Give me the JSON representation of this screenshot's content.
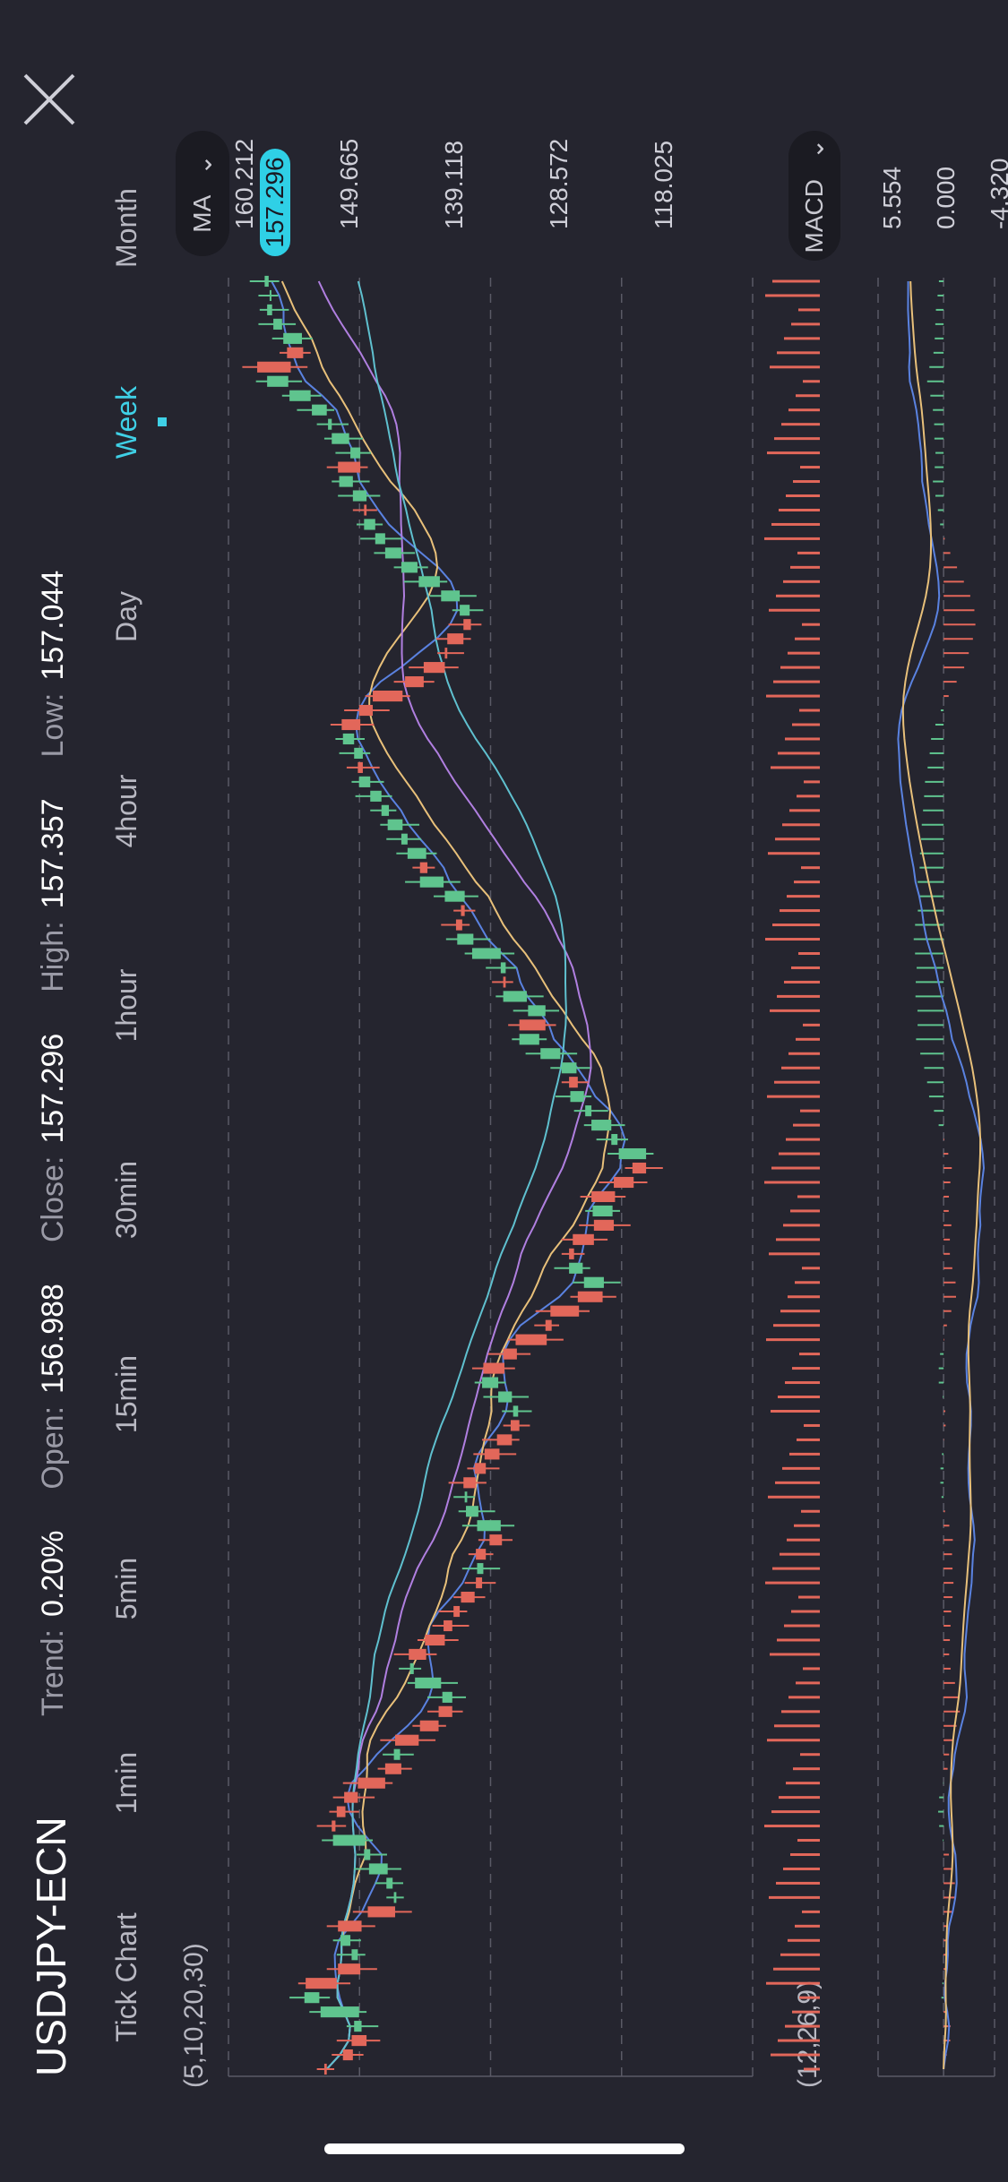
{
  "header": {
    "symbol": "USDJPY-ECN",
    "trend_label": "Trend:",
    "trend_value": "0.20%",
    "open_label": "Open:",
    "open_value": "156.988",
    "close_label": "Close:",
    "close_value": "157.296",
    "high_label": "High:",
    "high_value": "157.357",
    "low_label": "Low:",
    "low_value": "157.044"
  },
  "tabs": [
    {
      "label": "Tick Chart"
    },
    {
      "label": "1min"
    },
    {
      "label": "5min"
    },
    {
      "label": "15min"
    },
    {
      "label": "30min"
    },
    {
      "label": "1hour"
    },
    {
      "label": "4hour"
    },
    {
      "label": "Day"
    },
    {
      "label": "Week"
    },
    {
      "label": "Month"
    }
  ],
  "active_tab": "Week",
  "indicators": {
    "ma_label": "MA",
    "ma_params": "(5,10,20,30)",
    "macd_label": "MACD",
    "macd_params": "(12,26,9)"
  },
  "colors": {
    "background": "#25252f",
    "up": "#5fc48e",
    "down": "#e2675a",
    "accent": "#3fd0e6",
    "ma5": "#5a82e0",
    "ma10": "#e8c07a",
    "ma20": "#b07fe0",
    "ma30": "#5fc0cf"
  },
  "chart_data": [
    {
      "type": "candlestick",
      "title": "USDJPY-ECN",
      "y_ticks": [
        "160.212",
        "149.665",
        "139.118",
        "128.572",
        "118.025"
      ],
      "last_price": "157.296",
      "ylim": [
        118.025,
        160.212
      ],
      "candles_open_close": [
        [
          152.5,
          152.3
        ],
        [
          151.0,
          150.2
        ],
        [
          150.3,
          149.1
        ],
        [
          149.5,
          150.1
        ],
        [
          149.7,
          152.8
        ],
        [
          152.9,
          154.1
        ],
        [
          154.0,
          151.5
        ],
        [
          151.4,
          149.6
        ],
        [
          149.8,
          150.3
        ],
        [
          150.4,
          151.2
        ],
        [
          151.4,
          149.5
        ],
        [
          149.0,
          146.8
        ],
        [
          146.7,
          146.9
        ],
        [
          147.0,
          147.5
        ],
        [
          147.4,
          148.9
        ],
        [
          148.8,
          149.3
        ],
        [
          149.2,
          151.8
        ],
        [
          151.9,
          151.6
        ],
        [
          151.5,
          150.8
        ],
        [
          150.9,
          149.8
        ],
        [
          149.8,
          147.6
        ],
        [
          147.6,
          146.3
        ],
        [
          146.4,
          146.9
        ],
        [
          146.8,
          144.9
        ],
        [
          144.8,
          143.3
        ],
        [
          143.3,
          142.2
        ],
        [
          142.2,
          143.0
        ],
        [
          143.1,
          145.2
        ],
        [
          145.3,
          145.6
        ],
        [
          145.7,
          144.3
        ],
        [
          144.4,
          142.8
        ],
        [
          142.9,
          142.2
        ],
        [
          142.1,
          141.6
        ],
        [
          141.5,
          140.4
        ],
        [
          140.3,
          139.8
        ],
        [
          139.7,
          140.2
        ],
        [
          140.3,
          139.5
        ],
        [
          139.2,
          138.2
        ],
        [
          138.3,
          140.2
        ],
        [
          140.1,
          141.1
        ],
        [
          141.0,
          141.2
        ],
        [
          141.3,
          140.3
        ],
        [
          140.4,
          139.5
        ],
        [
          139.6,
          138.4
        ],
        [
          138.6,
          137.4
        ],
        [
          137.5,
          136.8
        ],
        [
          136.9,
          137.3
        ],
        [
          137.4,
          138.5
        ],
        [
          138.5,
          139.8
        ],
        [
          139.7,
          138.0
        ],
        [
          138.1,
          137.0
        ],
        [
          137.1,
          134.6
        ],
        [
          134.7,
          134.2
        ],
        [
          134.3,
          132.0
        ],
        [
          132.1,
          130.1
        ],
        [
          130.0,
          131.6
        ],
        [
          131.7,
          132.8
        ],
        [
          132.8,
          132.4
        ],
        [
          132.5,
          130.8
        ],
        [
          130.8,
          129.2
        ],
        [
          129.3,
          130.9
        ],
        [
          131.0,
          129.1
        ],
        [
          129.2,
          127.6
        ],
        [
          127.7,
          126.6
        ],
        [
          126.6,
          128.8
        ],
        [
          128.9,
          129.4
        ],
        [
          129.4,
          131.0
        ],
        [
          131.0,
          131.5
        ],
        [
          131.6,
          132.7
        ],
        [
          132.8,
          132.1
        ],
        [
          132.2,
          133.4
        ],
        [
          133.5,
          135.1
        ],
        [
          135.2,
          136.8
        ],
        [
          136.8,
          134.7
        ],
        [
          134.7,
          136.1
        ],
        [
          136.2,
          138.1
        ],
        [
          138.1,
          137.9
        ],
        [
          137.9,
          138.3
        ],
        [
          138.3,
          140.6
        ],
        [
          140.5,
          141.8
        ],
        [
          141.9,
          141.4
        ],
        [
          141.5,
          141.2
        ],
        [
          141.2,
          142.8
        ],
        [
          142.9,
          144.8
        ],
        [
          144.8,
          144.2
        ],
        [
          144.3,
          145.8
        ],
        [
          145.8,
          146.3
        ],
        [
          146.2,
          147.4
        ],
        [
          147.3,
          147.9
        ],
        [
          147.9,
          148.8
        ],
        [
          148.8,
          149.7
        ],
        [
          149.8,
          149.4
        ],
        [
          149.4,
          150.1
        ],
        [
          150.1,
          151.0
        ],
        [
          151.1,
          149.6
        ],
        [
          149.7,
          148.6
        ],
        [
          148.6,
          146.2
        ],
        [
          146.0,
          144.5
        ],
        [
          144.5,
          142.8
        ],
        [
          142.8,
          142.6
        ],
        [
          142.6,
          141.3
        ],
        [
          141.3,
          140.7
        ],
        [
          140.8,
          141.6
        ],
        [
          141.6,
          143.1
        ],
        [
          143.2,
          144.9
        ],
        [
          145.0,
          146.3
        ],
        [
          146.3,
          147.6
        ],
        [
          147.6,
          148.4
        ],
        [
          148.4,
          149.3
        ],
        [
          149.3,
          149.1
        ],
        [
          149.1,
          150.2
        ],
        [
          150.2,
          151.3
        ],
        [
          151.4,
          149.6
        ],
        [
          149.6,
          150.4
        ],
        [
          150.5,
          151.9
        ],
        [
          151.9,
          152.2
        ],
        [
          152.3,
          153.5
        ],
        [
          153.6,
          155.3
        ],
        [
          155.4,
          157.1
        ],
        [
          157.9,
          155.2
        ],
        [
          155.5,
          154.2
        ],
        [
          154.3,
          155.8
        ],
        [
          155.9,
          156.6
        ],
        [
          156.7,
          157.1
        ],
        [
          156.8,
          156.9
        ],
        [
          156.98,
          157.3
        ]
      ]
    },
    {
      "type": "bar",
      "name": "volume"
    },
    {
      "type": "bar",
      "name": "MACD",
      "y_ticks": [
        "5.554",
        "0.000",
        "-4.320"
      ],
      "ylim": [
        -4.32,
        5.554
      ]
    }
  ]
}
